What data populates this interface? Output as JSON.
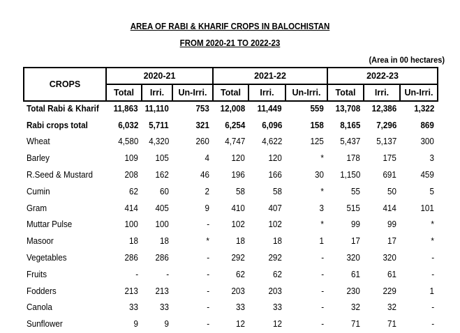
{
  "title_line1": "AREA OF RABI & KHARIF CROPS IN BALOCHISTAN",
  "title_line2": "FROM 2020-21 TO 2022-23",
  "unit_note": "(Area in 00 hectares)",
  "table": {
    "crops_header": "CROPS",
    "years": [
      "2020-21",
      "2021-22",
      "2022-23"
    ],
    "subheaders": [
      "Total",
      "Irri.",
      "Un-Irri."
    ],
    "rows": [
      {
        "name": "Total Rabi & Kharif",
        "bold": true,
        "values": [
          "11,863",
          "11,110",
          "753",
          "12,008",
          "11,449",
          "559",
          "13,708",
          "12,386",
          "1,322"
        ]
      },
      {
        "name": "Rabi crops total",
        "bold": true,
        "values": [
          "6,032",
          "5,711",
          "321",
          "6,254",
          "6,096",
          "158",
          "8,165",
          "7,296",
          "869"
        ]
      },
      {
        "name": "Wheat",
        "bold": false,
        "values": [
          "4,580",
          "4,320",
          "260",
          "4,747",
          "4,622",
          "125",
          "5,437",
          "5,137",
          "300"
        ]
      },
      {
        "name": "Barley",
        "bold": false,
        "values": [
          "109",
          "105",
          "4",
          "120",
          "120",
          "*",
          "178",
          "175",
          "3"
        ]
      },
      {
        "name": "R.Seed & Mustard",
        "bold": false,
        "values": [
          "208",
          "162",
          "46",
          "196",
          "166",
          "30",
          "1,150",
          "691",
          "459"
        ]
      },
      {
        "name": "Cumin",
        "bold": false,
        "values": [
          "62",
          "60",
          "2",
          "58",
          "58",
          "*",
          "55",
          "50",
          "5"
        ]
      },
      {
        "name": "Gram",
        "bold": false,
        "values": [
          "414",
          "405",
          "9",
          "410",
          "407",
          "3",
          "515",
          "414",
          "101"
        ]
      },
      {
        "name": "Muttar Pulse",
        "bold": false,
        "values": [
          "100",
          "100",
          "-",
          "102",
          "102",
          "*",
          "99",
          "99",
          "*"
        ]
      },
      {
        "name": "Masoor",
        "bold": false,
        "values": [
          "18",
          "18",
          "*",
          "18",
          "18",
          "1",
          "17",
          "17",
          "*"
        ]
      },
      {
        "name": "Vegetables",
        "bold": false,
        "values": [
          "286",
          "286",
          "-",
          "292",
          "292",
          "-",
          "320",
          "320",
          "-"
        ]
      },
      {
        "name": "Fruits",
        "bold": false,
        "values": [
          "-",
          "-",
          "-",
          "62",
          "62",
          "-",
          "61",
          "61",
          "-"
        ]
      },
      {
        "name": "Fodders",
        "bold": false,
        "values": [
          "213",
          "213",
          "-",
          "203",
          "203",
          "-",
          "230",
          "229",
          "1"
        ]
      },
      {
        "name": "Canola",
        "bold": false,
        "values": [
          "33",
          "33",
          "-",
          "33",
          "33",
          "-",
          "32",
          "32",
          "-"
        ]
      },
      {
        "name": "Sunflower",
        "bold": false,
        "values": [
          "9",
          "9",
          "-",
          "12",
          "12",
          "-",
          "71",
          "71",
          "-"
        ]
      }
    ]
  }
}
